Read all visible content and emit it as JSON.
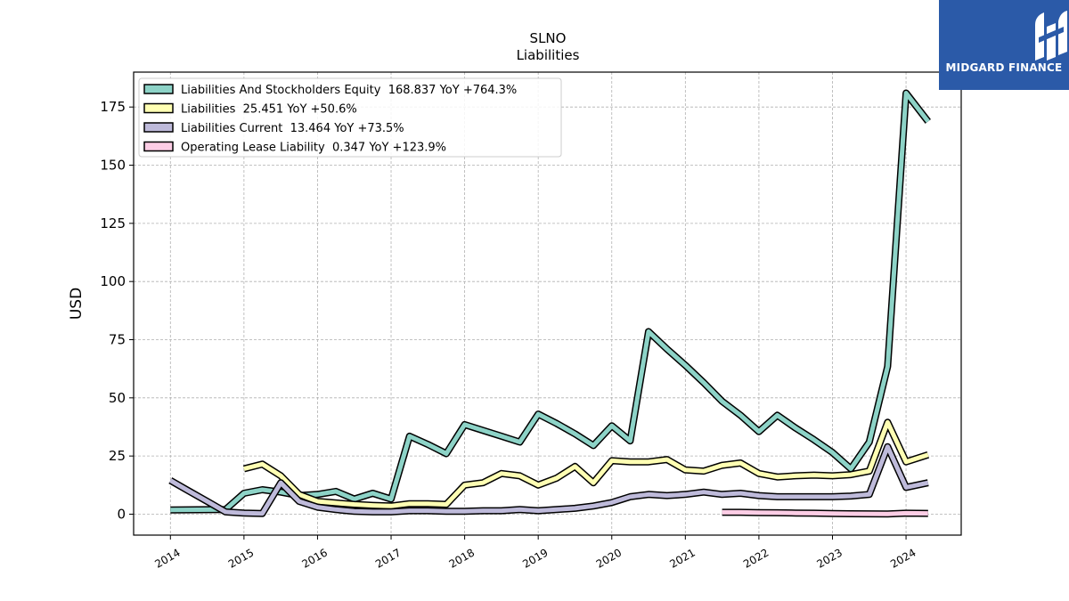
{
  "chart_data": {
    "type": "line",
    "title": "SLNO",
    "subtitle": "Liabilities",
    "ylabel": "USD",
    "xlabel": "",
    "ylim": [
      -9,
      190
    ],
    "xlim": [
      2013.5,
      2024.75
    ],
    "x_ticks": [
      "2014",
      "2015",
      "2016",
      "2017",
      "2018",
      "2019",
      "2020",
      "2021",
      "2022",
      "2023",
      "2024"
    ],
    "y_ticks": [
      0,
      25,
      50,
      75,
      100,
      125,
      150,
      175
    ],
    "grid": true,
    "legend_position": "top-left",
    "series": [
      {
        "name": "Liabilities And Stockholders Equity  168.837 YoY +764.3%",
        "color": "#8dd3c7",
        "points": [
          [
            2014.0,
            1.8
          ],
          [
            2014.75,
            2.0
          ],
          [
            2015.0,
            9.0
          ],
          [
            2015.25,
            10.5
          ],
          [
            2015.5,
            9.5
          ],
          [
            2015.75,
            8.0
          ],
          [
            2016.0,
            8.5
          ],
          [
            2016.25,
            9.8
          ],
          [
            2016.5,
            6.5
          ],
          [
            2016.75,
            9.0
          ],
          [
            2017.0,
            6.5
          ],
          [
            2017.25,
            33.5
          ],
          [
            2017.5,
            30.0
          ],
          [
            2017.75,
            26.0
          ],
          [
            2018.0,
            38.5
          ],
          [
            2018.25,
            36.0
          ],
          [
            2018.5,
            33.5
          ],
          [
            2018.75,
            31.0
          ],
          [
            2019.0,
            43.0
          ],
          [
            2019.25,
            39.0
          ],
          [
            2019.5,
            34.5
          ],
          [
            2019.75,
            29.5
          ],
          [
            2020.0,
            38.0
          ],
          [
            2020.25,
            31.5
          ],
          [
            2020.5,
            78.5
          ],
          [
            2020.75,
            71.0
          ],
          [
            2021.0,
            64.0
          ],
          [
            2021.25,
            56.5
          ],
          [
            2021.5,
            48.5
          ],
          [
            2021.75,
            42.5
          ],
          [
            2022.0,
            35.5
          ],
          [
            2022.25,
            42.5
          ],
          [
            2022.5,
            37.0
          ],
          [
            2022.75,
            32.0
          ],
          [
            2023.0,
            26.5
          ],
          [
            2023.25,
            19.5
          ],
          [
            2023.5,
            31.0
          ],
          [
            2023.75,
            63.5
          ],
          [
            2024.0,
            181.0
          ],
          [
            2024.3,
            168.8
          ]
        ]
      },
      {
        "name": "Liabilities  25.451 YoY +50.6%",
        "color": "#ffffb3",
        "points": [
          [
            2015.0,
            19.5
          ],
          [
            2015.25,
            21.5
          ],
          [
            2015.5,
            16.5
          ],
          [
            2015.75,
            8.5
          ],
          [
            2016.0,
            5.5
          ],
          [
            2016.25,
            4.8
          ],
          [
            2016.5,
            4.2
          ],
          [
            2016.75,
            3.8
          ],
          [
            2017.0,
            3.5
          ],
          [
            2017.25,
            4.5
          ],
          [
            2017.5,
            4.5
          ],
          [
            2017.75,
            4.2
          ],
          [
            2018.0,
            12.5
          ],
          [
            2018.25,
            13.5
          ],
          [
            2018.5,
            17.5
          ],
          [
            2018.75,
            16.5
          ],
          [
            2019.0,
            12.5
          ],
          [
            2019.25,
            15.5
          ],
          [
            2019.5,
            20.5
          ],
          [
            2019.75,
            13.5
          ],
          [
            2020.0,
            23.0
          ],
          [
            2020.25,
            22.5
          ],
          [
            2020.5,
            22.5
          ],
          [
            2020.75,
            23.5
          ],
          [
            2021.0,
            19.0
          ],
          [
            2021.25,
            18.5
          ],
          [
            2021.5,
            21.0
          ],
          [
            2021.75,
            22.0
          ],
          [
            2022.0,
            17.5
          ],
          [
            2022.25,
            16.0
          ],
          [
            2022.5,
            16.5
          ],
          [
            2022.75,
            16.8
          ],
          [
            2023.0,
            16.5
          ],
          [
            2023.25,
            17.0
          ],
          [
            2023.5,
            18.5
          ],
          [
            2023.75,
            39.5
          ],
          [
            2024.0,
            22.5
          ],
          [
            2024.3,
            25.5
          ]
        ]
      },
      {
        "name": "Liabilities Current  13.464 YoY +73.5%",
        "color": "#bebada",
        "points": [
          [
            2014.0,
            14.5
          ],
          [
            2014.25,
            10.0
          ],
          [
            2014.5,
            5.5
          ],
          [
            2014.75,
            1.0
          ],
          [
            2015.0,
            0.5
          ],
          [
            2015.25,
            0.3
          ],
          [
            2015.5,
            13.5
          ],
          [
            2015.75,
            5.5
          ],
          [
            2016.0,
            3.0
          ],
          [
            2016.25,
            2.0
          ],
          [
            2016.5,
            1.2
          ],
          [
            2016.75,
            1.0
          ],
          [
            2017.0,
            1.0
          ],
          [
            2017.25,
            1.5
          ],
          [
            2017.5,
            1.5
          ],
          [
            2017.75,
            1.2
          ],
          [
            2018.0,
            1.2
          ],
          [
            2018.25,
            1.5
          ],
          [
            2018.5,
            1.5
          ],
          [
            2018.75,
            2.0
          ],
          [
            2019.0,
            1.5
          ],
          [
            2019.25,
            2.0
          ],
          [
            2019.5,
            2.5
          ],
          [
            2019.75,
            3.5
          ],
          [
            2020.0,
            5.0
          ],
          [
            2020.25,
            7.5
          ],
          [
            2020.5,
            8.5
          ],
          [
            2020.75,
            8.0
          ],
          [
            2021.0,
            8.5
          ],
          [
            2021.25,
            9.5
          ],
          [
            2021.5,
            8.5
          ],
          [
            2021.75,
            9.0
          ],
          [
            2022.0,
            8.0
          ],
          [
            2022.25,
            7.5
          ],
          [
            2022.5,
            7.5
          ],
          [
            2022.75,
            7.5
          ],
          [
            2023.0,
            7.5
          ],
          [
            2023.25,
            7.8
          ],
          [
            2023.5,
            8.5
          ],
          [
            2023.75,
            29.0
          ],
          [
            2024.0,
            11.5
          ],
          [
            2024.3,
            13.5
          ]
        ]
      },
      {
        "name": "Operating Lease Liability  0.347 YoY +123.9%",
        "color": "#fccde5",
        "points": [
          [
            2021.5,
            0.8
          ],
          [
            2021.75,
            0.8
          ],
          [
            2022.0,
            0.7
          ],
          [
            2022.25,
            0.6
          ],
          [
            2022.5,
            0.5
          ],
          [
            2022.75,
            0.4
          ],
          [
            2023.0,
            0.3
          ],
          [
            2023.25,
            0.2
          ],
          [
            2023.5,
            0.15
          ],
          [
            2023.75,
            0.1
          ],
          [
            2024.0,
            0.4
          ],
          [
            2024.3,
            0.35
          ]
        ]
      }
    ]
  },
  "logo": {
    "text": "MIDGARD FINANCE",
    "background": "#2b5aa8"
  }
}
